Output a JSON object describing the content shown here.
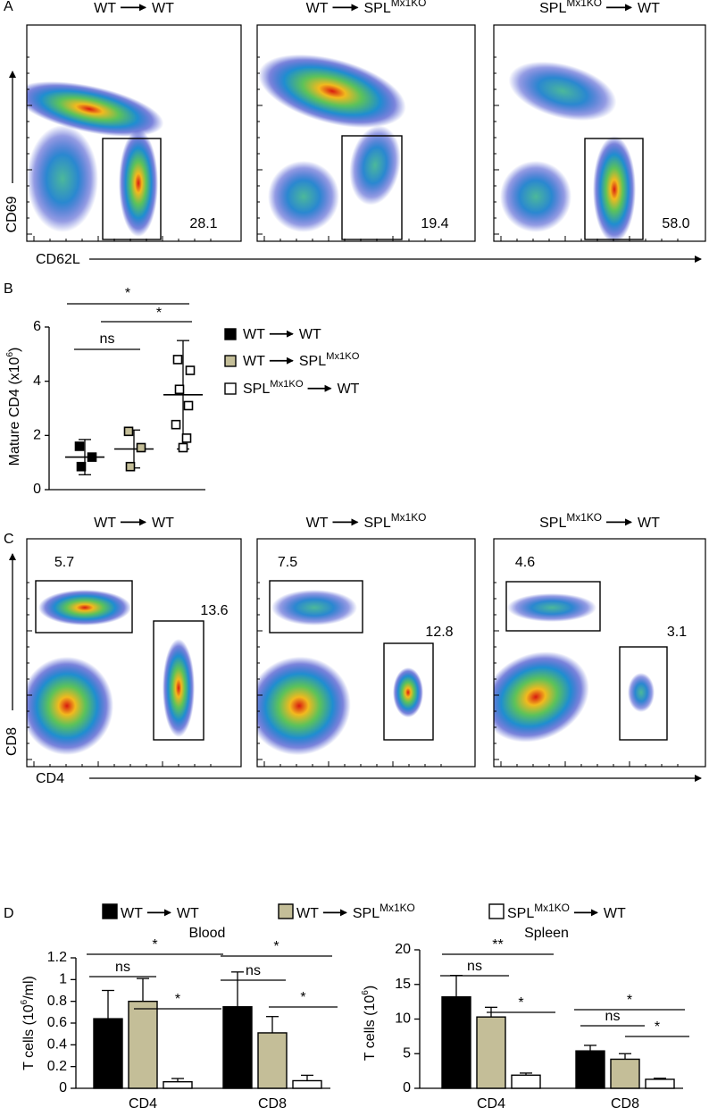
{
  "panel_labels": [
    "A",
    "B",
    "C",
    "D"
  ],
  "chart_data": [
    {
      "type": "flow",
      "titles": [
        {
          "from": "WT",
          "to": "WT"
        },
        {
          "from": "WT",
          "to": "SPL",
          "to_sup": "Mx1KO"
        },
        {
          "from": "SPL",
          "from_sup": "Mx1KO",
          "to": "WT"
        }
      ],
      "xlabel": "CD62L",
      "ylabel": "CD69",
      "gates": [
        [
          28.1
        ],
        [
          19.4
        ],
        [
          {
            "value": 58,
            "label": "58.0"
          }
        ]
      ]
    },
    {
      "type": "dot",
      "ylabel": {
        "text": "Mature CD4 (x10",
        "sup": "6",
        "end": ")"
      },
      "ylim": [
        0,
        6
      ],
      "yticks": [
        0,
        2,
        4,
        6
      ],
      "series": [
        {
          "name": {
            "from": "WT",
            "to": "WT"
          },
          "color": "#000000",
          "values": [
            1.6,
            1.2,
            0.85
          ],
          "mean": 1.2,
          "error": 0.65
        },
        {
          "name": {
            "from": "WT",
            "to": "SPL",
            "to_sup": "Mx1KO"
          },
          "color": "#c4be98",
          "values": [
            2.15,
            1.55,
            0.85
          ],
          "mean": 1.5,
          "error": 0.7
        },
        {
          "name": {
            "from": "SPL",
            "from_sup": "Mx1KO",
            "to": "WT"
          },
          "color": "#ffffff",
          "values": [
            4.8,
            4.4,
            3.7,
            3.1,
            2.4,
            1.9,
            1.55
          ],
          "mean": 3.5,
          "error": 2.0
        }
      ],
      "significance": [
        "*",
        "*",
        "ns"
      ]
    },
    {
      "type": "flow",
      "titles": [
        {
          "from": "WT",
          "to": "WT"
        },
        {
          "from": "WT",
          "to": "SPL",
          "to_sup": "Mx1KO"
        },
        {
          "from": "SPL",
          "from_sup": "Mx1KO",
          "to": "WT"
        }
      ],
      "xlabel": "CD4",
      "ylabel": "CD8",
      "gates": [
        [
          5.7,
          13.6
        ],
        [
          7.5,
          12.8
        ],
        [
          4.6,
          3.1
        ]
      ]
    },
    {
      "type": "bar",
      "title": "Blood",
      "ylabel": {
        "text": "T cells (10",
        "sup": "6",
        "end": "/ml)"
      },
      "categories": [
        "CD4",
        "CD8"
      ],
      "ylim": [
        0,
        1.2
      ],
      "yticks": [
        0,
        0.2,
        0.4,
        0.6,
        0.8,
        1,
        1.2
      ],
      "series": [
        {
          "name": {
            "from": "WT",
            "to": "WT"
          },
          "color": "#000000",
          "values": [
            0.64,
            0.75
          ],
          "errors": [
            0.26,
            0.32
          ]
        },
        {
          "name": {
            "from": "WT",
            "to": "SPL",
            "to_sup": "Mx1KO"
          },
          "color": "#c4be98",
          "values": [
            0.8,
            0.51
          ],
          "errors": [
            0.21,
            0.15
          ]
        },
        {
          "name": {
            "from": "SPL",
            "from_sup": "Mx1KO",
            "to": "WT"
          },
          "color": "#ffffff",
          "values": [
            0.06,
            0.07
          ],
          "errors": [
            0.03,
            0.05
          ]
        }
      ],
      "significance": [
        [
          "*",
          "ns",
          "*"
        ],
        [
          "*",
          "ns",
          "*"
        ]
      ]
    },
    {
      "type": "bar",
      "title": "Spleen",
      "ylabel": {
        "text": "T cells (10",
        "sup": "6",
        "end": ")"
      },
      "categories": [
        "CD4",
        "CD8"
      ],
      "ylim": [
        0,
        20
      ],
      "yticks": [
        0,
        5,
        10,
        15,
        20
      ],
      "series": [
        {
          "color": "#000000",
          "values": [
            13.2,
            5.4
          ],
          "errors": [
            3.1,
            0.8
          ]
        },
        {
          "color": "#c4be98",
          "values": [
            10.3,
            4.2
          ],
          "errors": [
            1.4,
            0.8
          ]
        },
        {
          "color": "#ffffff",
          "values": [
            1.9,
            1.3
          ],
          "errors": [
            0.3,
            0.15
          ]
        }
      ],
      "significance": [
        [
          "**",
          "ns",
          "*"
        ],
        [
          "*",
          "ns",
          "*"
        ]
      ]
    }
  ]
}
